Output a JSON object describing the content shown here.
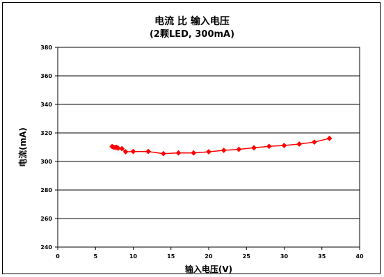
{
  "chart_data": {
    "type": "line",
    "title": "电流 比 输入电压",
    "subtitle": "(2颗LED, 300mA)",
    "xlabel": "输入电压(V)",
    "ylabel": "电流(mA)",
    "xlim": [
      0,
      40
    ],
    "ylim": [
      240,
      380
    ],
    "x_ticks": [
      0,
      5,
      10,
      15,
      20,
      25,
      30,
      35,
      40
    ],
    "y_ticks": [
      240,
      260,
      280,
      300,
      320,
      340,
      360,
      380
    ],
    "grid": "horizontal",
    "legend": "none",
    "series": [
      {
        "color": "#ff0000",
        "marker": "diamond",
        "x": [
          7.2,
          7.4,
          7.6,
          7.8,
          8.0,
          8.5,
          9.0,
          10.0,
          12.0,
          14.0,
          16.0,
          18.0,
          20.0,
          22.0,
          24.0,
          26.0,
          28.0,
          30.0,
          32.0,
          34.0,
          36.0
        ],
        "y": [
          310.5,
          310.0,
          309.8,
          310.0,
          309.3,
          309.0,
          306.8,
          307.0,
          307.0,
          305.5,
          306.0,
          306.0,
          306.8,
          307.8,
          308.5,
          309.6,
          310.6,
          311.2,
          312.2,
          313.6,
          316.2
        ]
      }
    ]
  }
}
